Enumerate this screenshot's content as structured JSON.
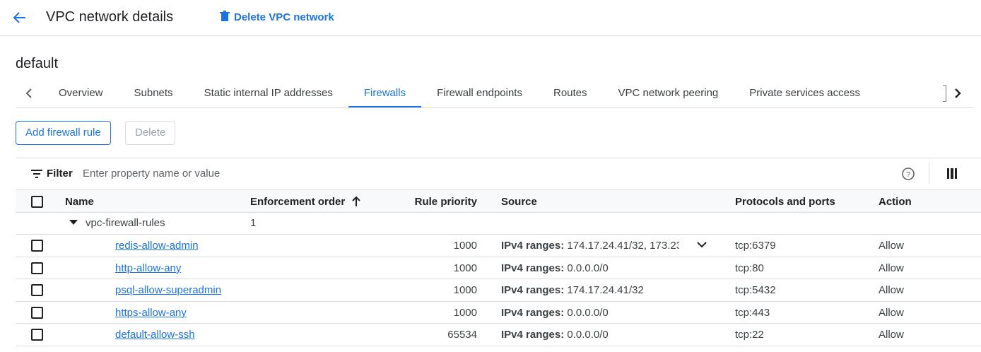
{
  "header": {
    "title": "VPC network details",
    "delete_button": "Delete VPC network"
  },
  "network_name": "default",
  "tabs": {
    "items": [
      "Overview",
      "Subnets",
      "Static internal IP addresses",
      "Firewalls",
      "Firewall endpoints",
      "Routes",
      "VPC network peering",
      "Private services access"
    ],
    "active": 3
  },
  "toolbar": {
    "add": "Add firewall rule",
    "delete": "Delete"
  },
  "filter": {
    "label": "Filter",
    "placeholder": "Enter property name or value"
  },
  "table": {
    "columns": [
      "Name",
      "Enforcement order",
      "Rule priority",
      "Source",
      "Protocols and ports",
      "Action"
    ],
    "group": {
      "name": "vpc-firewall-rules",
      "order": 1
    },
    "rows": [
      {
        "name": "redis-allow-admin",
        "priority": 1000,
        "source_label": "IPv4 ranges:",
        "source": "174.17.24.41/32, 173.23",
        "protocols": "tcp:6379",
        "action": "Allow"
      },
      {
        "name": "http-allow-any",
        "priority": 1000,
        "source_label": "IPv4 ranges:",
        "source": "0.0.0.0/0",
        "protocols": "tcp:80",
        "action": "Allow"
      },
      {
        "name": "psql-allow-superadmin",
        "priority": 1000,
        "source_label": "IPv4 ranges:",
        "source": "174.17.24.41/32",
        "protocols": "tcp:5432",
        "action": "Allow"
      },
      {
        "name": "https-allow-any",
        "priority": 1000,
        "source_label": "IPv4 ranges:",
        "source": "0.0.0.0/0",
        "protocols": "tcp:443",
        "action": "Allow"
      },
      {
        "name": "default-allow-ssh",
        "priority": 65534,
        "source_label": "IPv4 ranges:",
        "source": "0.0.0.0/0",
        "protocols": "tcp:22",
        "action": "Allow"
      }
    ]
  }
}
